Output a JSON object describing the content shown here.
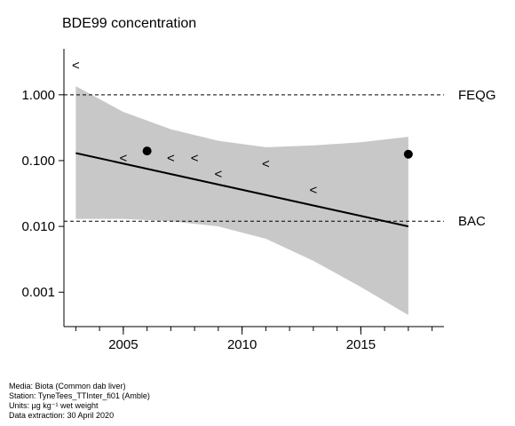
{
  "chart_data": {
    "type": "scatter",
    "title": "BDE99 concentration",
    "y_scale": "log",
    "xlim": [
      2002.5,
      2018.5
    ],
    "ylim": [
      0.0003,
      5
    ],
    "x_ticks": [
      2005,
      2010,
      2015
    ],
    "x_tick_labels": [
      "2005",
      "2010",
      "2015"
    ],
    "y_ticks": [
      0.001,
      0.01,
      0.1,
      1
    ],
    "y_tick_labels": [
      "0.001",
      "0.010",
      "0.100",
      "1.000"
    ],
    "reference_lines": [
      {
        "name": "FEQG",
        "y": 1.0
      },
      {
        "name": "BAC",
        "y": 0.012
      }
    ],
    "detected_points": [
      {
        "x": 2006,
        "y": 0.14
      },
      {
        "x": 2017,
        "y": 0.125
      }
    ],
    "less_than_points": [
      {
        "x": 2003,
        "y": 2.8
      },
      {
        "x": 2005,
        "y": 0.11
      },
      {
        "x": 2007,
        "y": 0.11
      },
      {
        "x": 2008,
        "y": 0.11
      },
      {
        "x": 2009,
        "y": 0.063
      },
      {
        "x": 2011,
        "y": 0.09
      },
      {
        "x": 2013,
        "y": 0.036
      }
    ],
    "trend": {
      "x": [
        2003,
        2017
      ],
      "y": [
        0.13,
        0.01
      ]
    },
    "confidence_band": {
      "x": [
        2003,
        2005,
        2007,
        2009,
        2011,
        2013,
        2015,
        2017
      ],
      "upper": [
        1.35,
        0.55,
        0.3,
        0.2,
        0.16,
        0.17,
        0.19,
        0.23
      ],
      "lower": [
        0.013,
        0.013,
        0.012,
        0.01,
        0.0065,
        0.003,
        0.0012,
        0.00045
      ]
    }
  },
  "footnotes": {
    "media": "Media: Biota (Common dab liver)",
    "station": "Station: TyneTees_TTInter_fi01 (Amble)",
    "units": "Units:  µg kg⁻¹ wet weight",
    "extraction": "Data extraction: 30 April 2020"
  },
  "colors": {
    "band": "#c8c8c8",
    "line": "#000000"
  }
}
